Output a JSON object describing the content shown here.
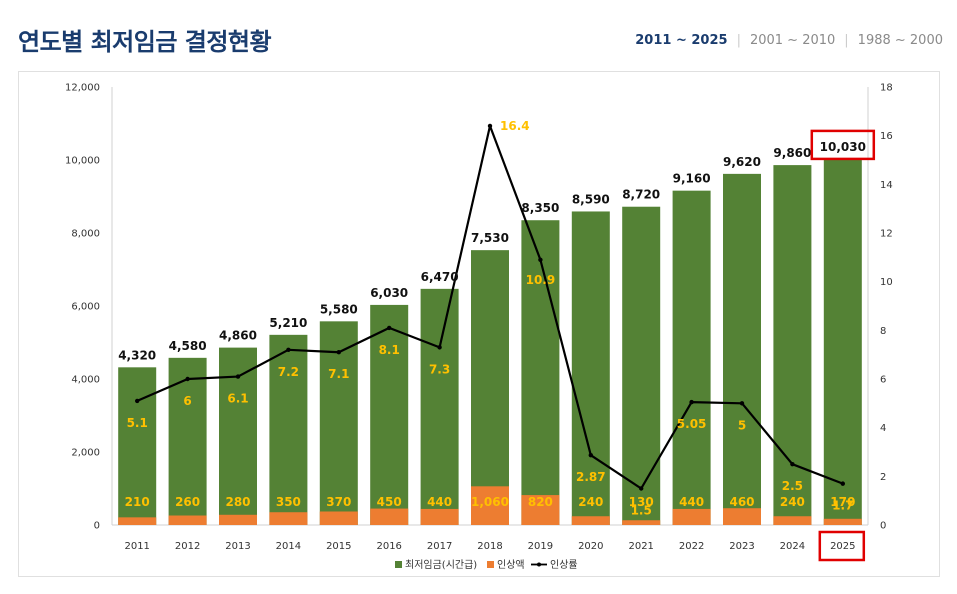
{
  "page": {
    "title": "연도별 최저임금 결정현황",
    "tabs": [
      {
        "label": "2011 ~ 2025",
        "active": true
      },
      {
        "label": "2001 ~ 2010",
        "active": false
      },
      {
        "label": "1988 ~ 2000",
        "active": false
      }
    ]
  },
  "chart_data": {
    "type": "bar",
    "categories": [
      "2011",
      "2012",
      "2013",
      "2014",
      "2015",
      "2016",
      "2017",
      "2018",
      "2019",
      "2020",
      "2021",
      "2022",
      "2023",
      "2024",
      "2025"
    ],
    "series": [
      {
        "name": "최저임금(시간급)",
        "type": "bar",
        "axis": "left",
        "color": "#548235",
        "values": [
          4320,
          4580,
          4860,
          5210,
          5580,
          6030,
          6470,
          7530,
          8350,
          8590,
          8720,
          9160,
          9620,
          9860,
          10030
        ],
        "labels": [
          "4,320",
          "4,580",
          "4,860",
          "5,210",
          "5,580",
          "6,030",
          "6,470",
          "7,530",
          "8,350",
          "8,590",
          "8,720",
          "9,160",
          "9,620",
          "9,860",
          "10,030"
        ]
      },
      {
        "name": "인상액",
        "type": "bar",
        "axis": "left",
        "color": "#ed7d31",
        "values": [
          210,
          260,
          280,
          350,
          370,
          450,
          440,
          1060,
          820,
          240,
          130,
          440,
          460,
          240,
          170
        ],
        "labels": [
          "210",
          "260",
          "280",
          "350",
          "370",
          "450",
          "440",
          "1,060",
          "820",
          "240",
          "130",
          "440",
          "460",
          "240",
          "170"
        ]
      },
      {
        "name": "인상률",
        "type": "line",
        "axis": "right",
        "color": "#000000",
        "values": [
          5.1,
          6,
          6.1,
          7.2,
          7.1,
          8.1,
          7.3,
          16.4,
          10.9,
          2.87,
          1.5,
          5.05,
          5,
          2.5,
          1.7
        ],
        "labels": [
          "5.1",
          "6",
          "6.1",
          "7.2",
          "7.1",
          "8.1",
          "7.3",
          "16.4",
          "10.9",
          "2.87",
          "1.5",
          "5.05",
          "5",
          "2.5",
          "1.7"
        ]
      }
    ],
    "left_axis": {
      "ylim": [
        0,
        12000
      ],
      "ticks": [
        "0",
        "2,000",
        "4,000",
        "6,000",
        "8,000",
        "10,000",
        "12,000"
      ]
    },
    "right_axis": {
      "ylim": [
        0,
        18
      ],
      "ticks": [
        "0",
        "2",
        "4",
        "6",
        "8",
        "10",
        "12",
        "14",
        "16",
        "18"
      ]
    },
    "highlight": {
      "category": "2025",
      "color": "#e00000"
    },
    "legend": {
      "position": "bottom"
    },
    "grid": false
  }
}
